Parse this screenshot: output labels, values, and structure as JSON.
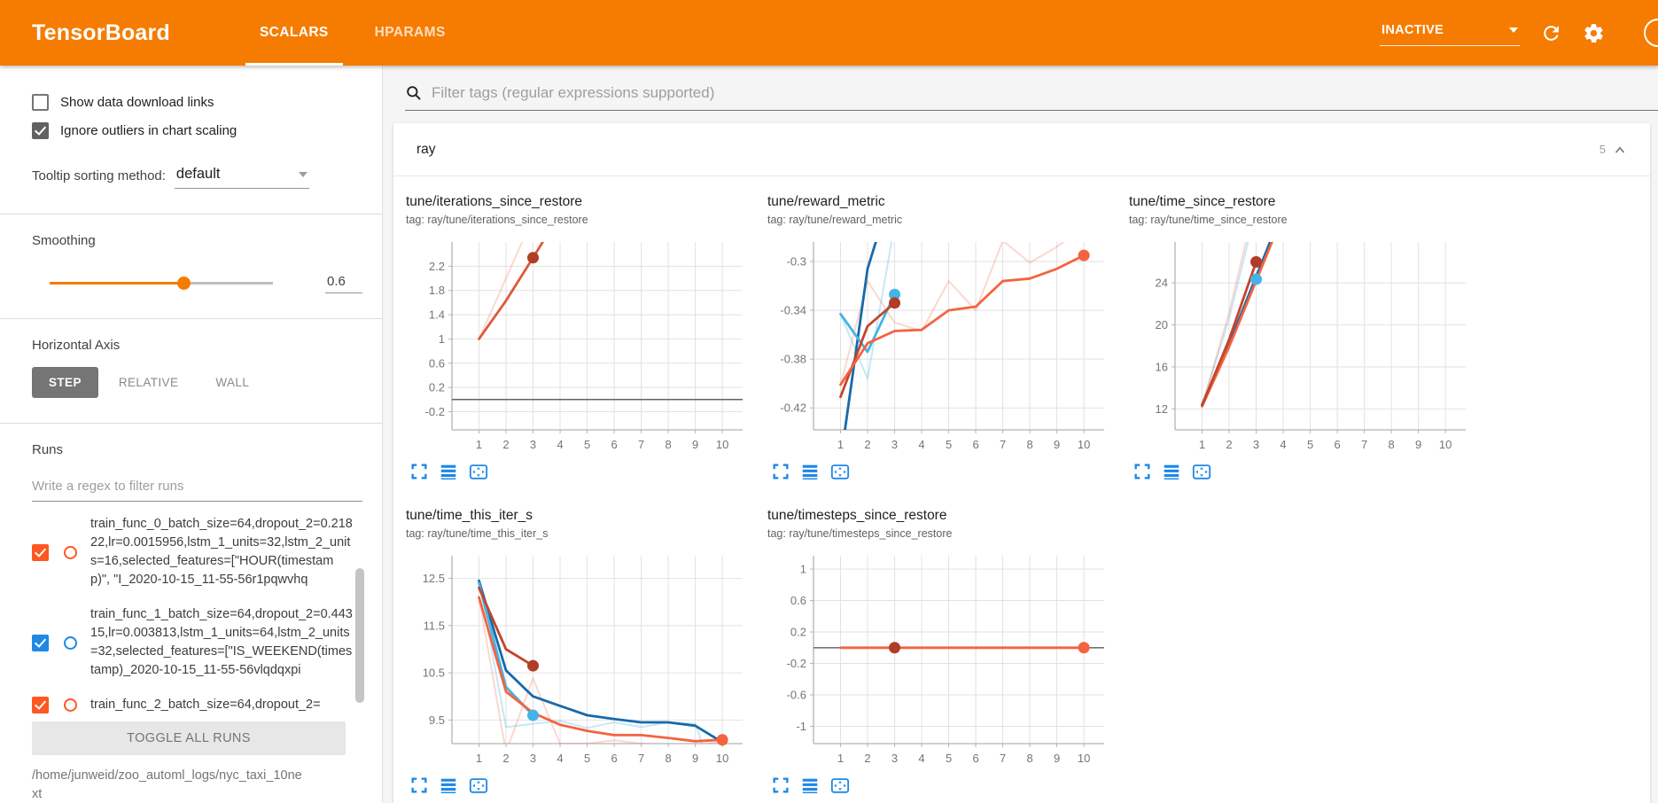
{
  "header": {
    "title": "TensorBoard",
    "tabs": [
      {
        "label": "SCALARS",
        "active": true
      },
      {
        "label": "HPARAMS",
        "active": false
      }
    ],
    "status": "INACTIVE"
  },
  "sidebar": {
    "checkboxes": [
      {
        "label": "Show data download links",
        "checked": false
      },
      {
        "label": "Ignore outliers in chart scaling",
        "checked": true
      }
    ],
    "tooltip_sorting": {
      "label": "Tooltip sorting method:",
      "value": "default"
    },
    "smoothing": {
      "label": "Smoothing",
      "value": "0.6"
    },
    "horizontal_axis": {
      "label": "Horizontal Axis",
      "options": [
        "STEP",
        "RELATIVE",
        "WALL"
      ],
      "selected": "STEP"
    },
    "runs": {
      "label": "Runs",
      "filter_placeholder": "Write a regex to filter runs",
      "items": [
        {
          "name": "train_func_0_batch_size=64,dropout_2=0.21822,lr=0.0015956,lstm_1_units=32,lstm_2_units=16,selected_features=[\"HOUR(timestamp)\", \"I_2020-10-15_11-55-56r1pqwvhq",
          "color": "#ff5722",
          "checked": true
        },
        {
          "name": "train_func_1_batch_size=64,dropout_2=0.44315,lr=0.003813,lstm_1_units=64,lstm_2_units=32,selected_features=[\"IS_WEEKEND(timestamp)_2020-10-15_11-55-56vlqdqxpi",
          "color": "#1e88e5",
          "checked": true
        },
        {
          "name": "train_func_2_batch_size=64,dropout_2=",
          "color": "#ff5722",
          "checked": true
        }
      ],
      "toggle_all_label": "TOGGLE ALL RUNS",
      "log_path": "/home/junweid/zoo_automl_logs/nyc_taxi_10next"
    }
  },
  "main": {
    "filter_placeholder": "Filter tags (regular expressions supported)",
    "section": {
      "name": "ray",
      "count": "5"
    }
  },
  "chart_data": [
    {
      "type": "line",
      "title": "tune/iterations_since_restore",
      "tag": "tag: ray/tune/iterations_since_restore",
      "xlabel": "step",
      "ylabel": "",
      "xticks": [
        1,
        2,
        3,
        4,
        5,
        6,
        7,
        8,
        9,
        10
      ],
      "xlim": [
        0,
        10.75
      ],
      "yticks": [
        -0.2,
        0.2,
        0.6,
        1,
        1.4,
        1.8,
        2.2
      ],
      "ylim": [
        -0.5,
        2.6
      ],
      "series": [
        {
          "name": "train_func_raw",
          "color": "rgba(244,99,63,0.25)",
          "width": 2,
          "points": [
            [
              1,
              1
            ],
            [
              2,
              2
            ],
            [
              3,
              3
            ]
          ]
        },
        {
          "name": "zero-line",
          "color": "#616161",
          "width": 1.5,
          "points": [
            [
              0,
              0
            ],
            [
              10.75,
              0
            ]
          ]
        },
        {
          "name": "train_func_smoothed",
          "color": "#e2573b",
          "width": 2.8,
          "points": [
            [
              1,
              1
            ],
            [
              2,
              1.63
            ],
            [
              3,
              2.34
            ],
            [
              3.8,
              2.92
            ]
          ]
        }
      ],
      "markers": [
        {
          "x": 3,
          "y": 2.34,
          "color": "#b03d26"
        }
      ]
    },
    {
      "type": "line",
      "title": "tune/reward_metric",
      "tag": "tag: ray/tune/reward_metric",
      "xlabel": "step",
      "ylabel": "",
      "xticks": [
        1,
        2,
        3,
        4,
        5,
        6,
        7,
        8,
        9,
        10
      ],
      "xlim": [
        0,
        10.75
      ],
      "yticks": [
        -0.42,
        -0.38,
        -0.34,
        -0.3
      ],
      "ylim": [
        -0.438,
        -0.284
      ],
      "series": [
        {
          "name": "train_func_0_raw",
          "color": "rgba(244,99,63,0.25)",
          "width": 2,
          "points": [
            [
              1,
              -0.401
            ],
            [
              2,
              -0.316
            ],
            [
              3,
              -0.35
            ],
            [
              4,
              -0.357
            ],
            [
              5,
              -0.316
            ],
            [
              6,
              -0.34
            ],
            [
              7,
              -0.283
            ],
            [
              8,
              -0.301
            ],
            [
              9,
              -0.288
            ],
            [
              10,
              -0.272
            ]
          ]
        },
        {
          "name": "train_func_3_raw",
          "color": "rgba(69,180,229,0.3)",
          "width": 2,
          "points": [
            [
              1,
              -0.343
            ],
            [
              2,
              -0.396
            ],
            [
              3,
              -0.27
            ]
          ]
        },
        {
          "name": "train_func_1",
          "color": "#1769aa",
          "width": 2.8,
          "points": [
            [
              1.15,
              -0.44
            ],
            [
              2,
              -0.306
            ],
            [
              2.5,
              -0.27
            ]
          ]
        },
        {
          "name": "train_func_3",
          "color": "#45b4e5",
          "width": 2.8,
          "points": [
            [
              1,
              -0.343
            ],
            [
              2,
              -0.374
            ],
            [
              3,
              -0.327
            ]
          ]
        },
        {
          "name": "train_func_2",
          "color": "#c4452c",
          "width": 2.8,
          "points": [
            [
              1,
              -0.411
            ],
            [
              2,
              -0.353
            ],
            [
              3,
              -0.334
            ]
          ]
        },
        {
          "name": "train_func_0",
          "color": "#f4633f",
          "width": 2.8,
          "points": [
            [
              1,
              -0.401
            ],
            [
              2,
              -0.367
            ],
            [
              3,
              -0.357
            ],
            [
              4,
              -0.356
            ],
            [
              5,
              -0.34
            ],
            [
              6,
              -0.337
            ],
            [
              7,
              -0.316
            ],
            [
              8,
              -0.314
            ],
            [
              9,
              -0.306
            ],
            [
              10,
              -0.295
            ]
          ]
        }
      ],
      "markers": [
        {
          "x": 3,
          "y": -0.327,
          "color": "#45b4e5"
        },
        {
          "x": 3,
          "y": -0.334,
          "color": "#b03d26"
        },
        {
          "x": 10,
          "y": -0.295,
          "color": "#f4633f"
        }
      ]
    },
    {
      "type": "line",
      "title": "tune/time_since_restore",
      "tag": "tag: ray/tune/time_since_restore",
      "xlabel": "step",
      "ylabel": "",
      "xticks": [
        1,
        2,
        3,
        4,
        5,
        6,
        7,
        8,
        9,
        10
      ],
      "xlim": [
        0,
        10.75
      ],
      "yticks": [
        12,
        16,
        20,
        24
      ],
      "ylim": [
        10,
        27.9
      ],
      "series": [
        {
          "name": "blue_raw",
          "color": "rgba(69,180,229,0.3)",
          "width": 2,
          "points": [
            [
              1,
              12.35
            ],
            [
              2,
              20.6
            ],
            [
              3,
              31
            ]
          ]
        },
        {
          "name": "orange_raw",
          "color": "rgba(244,99,63,0.25)",
          "width": 2,
          "points": [
            [
              1,
              12.25
            ],
            [
              2,
              21.2
            ],
            [
              3,
              32
            ]
          ]
        },
        {
          "name": "train_func_1",
          "color": "#1769aa",
          "width": 2.8,
          "points": [
            [
              1,
              12.4
            ],
            [
              2,
              18.2
            ],
            [
              3,
              24.6
            ],
            [
              4,
              31
            ]
          ]
        },
        {
          "name": "train_func_0",
          "color": "#f4633f",
          "width": 2.8,
          "points": [
            [
              1,
              12.25
            ],
            [
              2,
              17.9
            ],
            [
              3,
              24.2
            ],
            [
              4,
              30.5
            ]
          ]
        },
        {
          "name": "train_func_2",
          "color": "#c4452c",
          "width": 2.8,
          "points": [
            [
              1,
              12.35
            ],
            [
              2,
              18.6
            ],
            [
              3,
              26
            ]
          ]
        }
      ],
      "markers": [
        {
          "x": 3,
          "y": 26,
          "color": "#b03d26"
        },
        {
          "x": 3,
          "y": 24.35,
          "color": "#45b4e5"
        }
      ]
    },
    {
      "type": "line",
      "title": "tune/time_this_iter_s",
      "tag": "tag: ray/tune/time_this_iter_s",
      "xlabel": "step",
      "ylabel": "",
      "xticks": [
        1,
        2,
        3,
        4,
        5,
        6,
        7,
        8,
        9,
        10
      ],
      "xlim": [
        0,
        10.75
      ],
      "yticks": [
        9.5,
        10.5,
        11.5,
        12.5
      ],
      "ylim": [
        9.0,
        12.98
      ],
      "series": [
        {
          "name": "blue_raw",
          "color": "rgba(69,180,229,0.3)",
          "width": 2,
          "points": [
            [
              1,
              12.45
            ],
            [
              2,
              9.35
            ],
            [
              3,
              9.42
            ],
            [
              4,
              9.48
            ],
            [
              5,
              9.33
            ],
            [
              6,
              9.45
            ],
            [
              7,
              9.35
            ],
            [
              8,
              9.45
            ],
            [
              9,
              9.42
            ],
            [
              9.5,
              8.6
            ]
          ]
        },
        {
          "name": "orange_raw",
          "color": "rgba(244,99,63,0.25)",
          "width": 2,
          "points": [
            [
              1,
              12.1
            ],
            [
              2,
              8.82
            ],
            [
              3,
              10.38
            ],
            [
              4,
              9.0
            ],
            [
              5,
              9.0
            ],
            [
              6,
              9.07
            ],
            [
              7,
              9.0
            ],
            [
              8,
              8.97
            ],
            [
              9,
              8.95
            ],
            [
              10,
              9.05
            ]
          ]
        },
        {
          "name": "train_func_1",
          "color": "#1769aa",
          "width": 2.8,
          "points": [
            [
              1,
              12.45
            ],
            [
              2,
              10.55
            ],
            [
              3,
              10.0
            ],
            [
              4,
              9.8
            ],
            [
              5,
              9.6
            ],
            [
              6,
              9.52
            ],
            [
              7,
              9.45
            ],
            [
              8,
              9.45
            ],
            [
              9,
              9.38
            ],
            [
              10,
              9.03
            ]
          ]
        },
        {
          "name": "train_func_3",
          "color": "#45b4e5",
          "width": 2.8,
          "points": [
            [
              1,
              12.4
            ],
            [
              2,
              10.2
            ],
            [
              3,
              9.6
            ]
          ]
        },
        {
          "name": "train_func_2",
          "color": "#c4452c",
          "width": 2.8,
          "points": [
            [
              1,
              12.3
            ],
            [
              2,
              11.0
            ],
            [
              3,
              10.65
            ]
          ]
        },
        {
          "name": "train_func_0",
          "color": "#f4633f",
          "width": 2.8,
          "points": [
            [
              1,
              12.1
            ],
            [
              2,
              10.1
            ],
            [
              3,
              9.65
            ],
            [
              4,
              9.4
            ],
            [
              5,
              9.27
            ],
            [
              6,
              9.18
            ],
            [
              7,
              9.18
            ],
            [
              8,
              9.12
            ],
            [
              9,
              9.05
            ],
            [
              10,
              9.08
            ]
          ]
        }
      ],
      "markers": [
        {
          "x": 3,
          "y": 10.65,
          "color": "#b03d26"
        },
        {
          "x": 3,
          "y": 9.6,
          "color": "#45b4e5"
        },
        {
          "x": 10,
          "y": 9.08,
          "color": "#f4633f"
        }
      ]
    },
    {
      "type": "line",
      "title": "tune/timesteps_since_restore",
      "tag": "tag: ray/tune/timesteps_since_restore",
      "xlabel": "step",
      "ylabel": "",
      "xticks": [
        1,
        2,
        3,
        4,
        5,
        6,
        7,
        8,
        9,
        10
      ],
      "xlim": [
        0,
        10.75
      ],
      "yticks": [
        -1,
        -0.6,
        -0.2,
        0.2,
        0.6,
        1
      ],
      "ylim": [
        -1.22,
        1.17
      ],
      "series": [
        {
          "name": "zero-line",
          "color": "#757575",
          "width": 1.6,
          "points": [
            [
              0,
              0
            ],
            [
              10.75,
              0
            ]
          ]
        },
        {
          "name": "train_func_0",
          "color": "#f4633f",
          "width": 2.8,
          "points": [
            [
              1,
              0
            ],
            [
              10,
              0
            ]
          ]
        }
      ],
      "markers": [
        {
          "x": 3,
          "y": 0,
          "color": "#b03d26"
        },
        {
          "x": 10,
          "y": 0,
          "color": "#f4633f"
        }
      ]
    }
  ]
}
